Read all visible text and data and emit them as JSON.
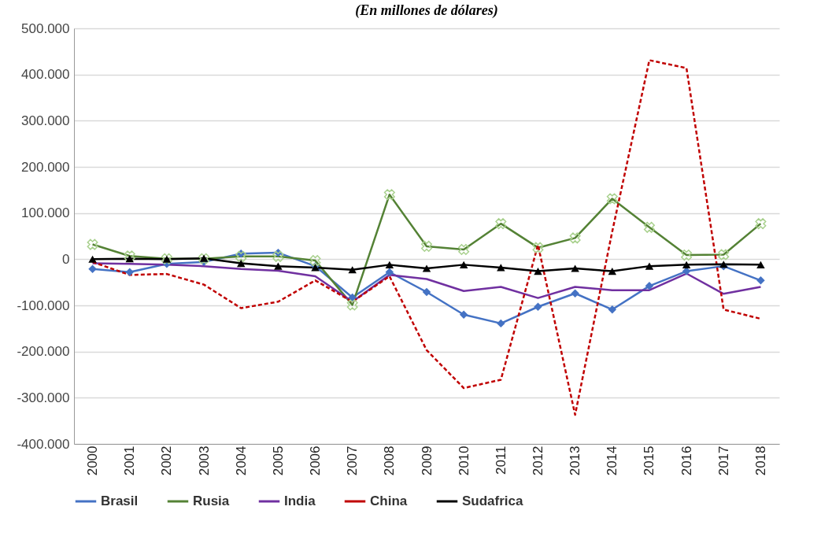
{
  "chart_data": {
    "type": "line",
    "title": "(En millones de dólares)",
    "categories": [
      "2000",
      "2001",
      "2002",
      "2003",
      "2004",
      "2005",
      "2006",
      "2007",
      "2008",
      "2009",
      "2010",
      "2011",
      "2012",
      "2013",
      "2014",
      "2015",
      "2016",
      "2017",
      "2018"
    ],
    "series": [
      {
        "name": "Brasil",
        "color": "#4472c4",
        "marker": "diamond",
        "line_style": "solid",
        "values": [
          -21000,
          -28000,
          -10000,
          -6000,
          12000,
          14000,
          -15000,
          -83000,
          -28000,
          -71000,
          -120000,
          -139000,
          -103000,
          -74000,
          -109000,
          -58000,
          -26000,
          -15000,
          -46000
        ]
      },
      {
        "name": "Rusia",
        "color": "#548235",
        "marker": "cross",
        "line_style": "solid",
        "values": [
          32000,
          7000,
          1000,
          1000,
          6000,
          6000,
          -3000,
          -99000,
          140000,
          28000,
          21000,
          77000,
          25000,
          46000,
          131000,
          69000,
          9000,
          10000,
          77000
        ]
      },
      {
        "name": "India",
        "color": "#7030a0",
        "marker": "none",
        "line_style": "solid",
        "values": [
          -9000,
          -10000,
          -12000,
          -15000,
          -21000,
          -25000,
          -37000,
          -92000,
          -34000,
          -43000,
          -69000,
          -60000,
          -84000,
          -60000,
          -67000,
          -67000,
          -31000,
          -75000,
          -60000
        ]
      },
      {
        "name": "China",
        "color": "#c00000",
        "marker": "none",
        "line_style": "dashed",
        "values": [
          -6000,
          -34000,
          -32000,
          -55000,
          -106000,
          -92000,
          -46000,
          -92000,
          -37000,
          -197000,
          -279000,
          -261000,
          31000,
          -337000,
          60000,
          431000,
          414000,
          -109000,
          -129000
        ]
      },
      {
        "name": "Sudafrica",
        "color": "#000000",
        "marker": "triangle",
        "line_style": "solid",
        "values": [
          0,
          1000,
          0,
          2000,
          -9000,
          -15000,
          -18000,
          -23000,
          -12000,
          -20000,
          -12000,
          -18000,
          -26000,
          -20000,
          -26000,
          -15000,
          -12000,
          -11000,
          -12000
        ]
      }
    ],
    "ylim": [
      -400000,
      500000
    ],
    "yticks": [
      {
        "value": -400000,
        "label": "-400.000"
      },
      {
        "value": -300000,
        "label": "-300.000"
      },
      {
        "value": -200000,
        "label": "-200.000"
      },
      {
        "value": -100000,
        "label": "-100.000"
      },
      {
        "value": 0,
        "label": "0"
      },
      {
        "value": 100000,
        "label": "100.000"
      },
      {
        "value": 200000,
        "label": "200.000"
      },
      {
        "value": 300000,
        "label": "300.000"
      },
      {
        "value": 400000,
        "label": "400.000"
      },
      {
        "value": 500000,
        "label": "500.000"
      }
    ],
    "grid": "y",
    "legend": "bottom"
  }
}
